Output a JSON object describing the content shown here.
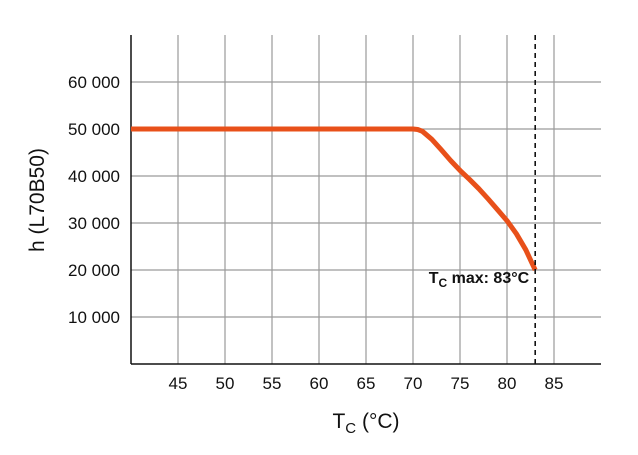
{
  "chart_data": {
    "type": "line",
    "title": "",
    "xlabel": "T",
    "xlabel_sub": "C",
    "xlabel_unit": " (°C)",
    "ylabel": "h (L70B50)",
    "xlim": [
      40,
      90
    ],
    "ylim": [
      0,
      70000
    ],
    "xticks": [
      45,
      50,
      55,
      60,
      65,
      70,
      75,
      80,
      85
    ],
    "yticks": [
      10000,
      20000,
      30000,
      40000,
      50000,
      60000
    ],
    "ytick_labels": [
      "10 000",
      "20 000",
      "30 000",
      "40 000",
      "50 000",
      "60 000"
    ],
    "grid": true,
    "series": [
      {
        "color": "#e8501a",
        "x": [
          40,
          70,
          70.5,
          71,
          72,
          73,
          74,
          75,
          76,
          77,
          78,
          79,
          80,
          81,
          82,
          83
        ],
        "y": [
          50000,
          50000,
          49900,
          49500,
          47800,
          45600,
          43300,
          41200,
          39300,
          37300,
          35100,
          32800,
          30500,
          27700,
          24300,
          20000
        ]
      }
    ],
    "annotation": {
      "x": 83,
      "line_style": "dashed",
      "label_main": "T",
      "label_sub": "C",
      "label_rest": " max: 83°C"
    }
  }
}
